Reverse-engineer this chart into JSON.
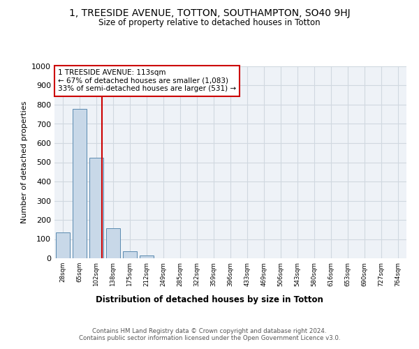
{
  "title": "1, TREESIDE AVENUE, TOTTON, SOUTHAMPTON, SO40 9HJ",
  "subtitle": "Size of property relative to detached houses in Totton",
  "xlabel": "Distribution of detached houses by size in Totton",
  "ylabel": "Number of detached properties",
  "bin_labels": [
    "28sqm",
    "65sqm",
    "102sqm",
    "138sqm",
    "175sqm",
    "212sqm",
    "249sqm",
    "285sqm",
    "322sqm",
    "359sqm",
    "396sqm",
    "433sqm",
    "469sqm",
    "506sqm",
    "543sqm",
    "580sqm",
    "616sqm",
    "653sqm",
    "690sqm",
    "727sqm",
    "764sqm"
  ],
  "bar_heights": [
    133,
    778,
    524,
    158,
    36,
    13,
    0,
    0,
    0,
    0,
    0,
    0,
    0,
    0,
    0,
    0,
    0,
    0,
    0,
    0,
    0
  ],
  "bar_color": "#c8d8e8",
  "bar_edge_color": "#5a8ab0",
  "grid_color": "#d0d8e0",
  "property_line_x": 2.33,
  "annotation_text": "1 TREESIDE AVENUE: 113sqm\n← 67% of detached houses are smaller (1,083)\n33% of semi-detached houses are larger (531) →",
  "annotation_box_color": "#ffffff",
  "annotation_box_edge": "#cc0000",
  "line_color": "#cc0000",
  "footnote": "Contains HM Land Registry data © Crown copyright and database right 2024.\nContains public sector information licensed under the Open Government Licence v3.0.",
  "ylim": [
    0,
    1000
  ],
  "yticks": [
    0,
    100,
    200,
    300,
    400,
    500,
    600,
    700,
    800,
    900,
    1000
  ],
  "bg_color": "#eef2f7",
  "fig_bg_color": "#ffffff"
}
